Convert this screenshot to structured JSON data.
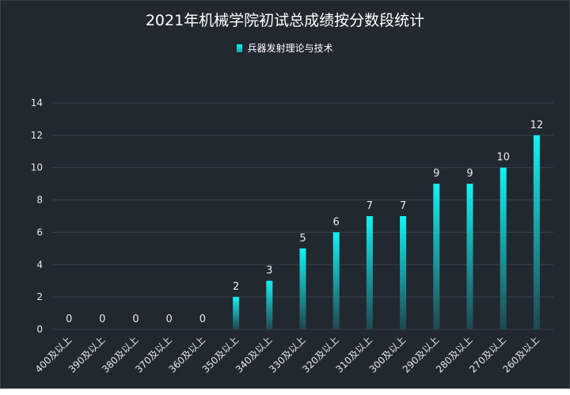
{
  "chart_data": {
    "type": "bar",
    "title": "2021年机械学院初试总成绩按分数段统计",
    "categories": [
      "400及以上",
      "390及以上",
      "380及以上",
      "370及以上",
      "360及以上",
      "350及以上",
      "340及以上",
      "330及以上",
      "320及以上",
      "310及以上",
      "300及以上",
      "290及以上",
      "280及以上",
      "270及以上",
      "260及以上"
    ],
    "series": [
      {
        "name": "兵器发射理论与技术",
        "values": [
          0,
          0,
          0,
          0,
          0,
          2,
          3,
          5,
          6,
          7,
          7,
          9,
          9,
          10,
          12
        ]
      }
    ],
    "ylim": [
      0,
      14
    ],
    "yticks": [
      0,
      2,
      4,
      6,
      8,
      10,
      12,
      14
    ],
    "grid": true,
    "legend": "top-center",
    "colors": {
      "background": "#222830",
      "bar_top": "#12f2f2",
      "bar_bottom": "#1f4850",
      "grid": "#39414c",
      "text": "#e6e9ee"
    }
  }
}
